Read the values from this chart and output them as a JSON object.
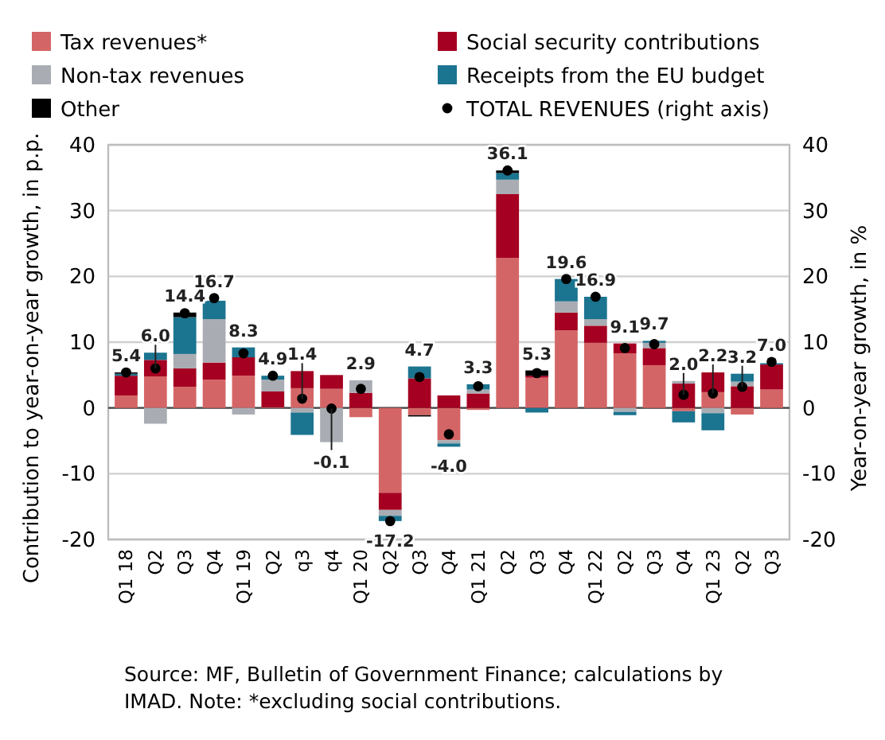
{
  "chart_data": {
    "type": "bar",
    "stacked": true,
    "ylabel": "Contribution to year-on-year growth, in p.p.",
    "y2label": "Year-on-year growth, in %",
    "categories": [
      "Q1 18",
      "Q2",
      "Q3",
      "Q4",
      "Q1 19",
      "Q2",
      "q3",
      "q4",
      "Q1 20",
      "Q2",
      "Q3",
      "Q4",
      "Q1 21",
      "Q2",
      "Q3",
      "Q4",
      "Q1 22",
      "Q2",
      "Q3",
      "Q4",
      "Q1 23",
      "Q2",
      "Q3"
    ],
    "series": [
      {
        "name": "Tax revenues*",
        "color": "#d46566",
        "values": [
          1.9,
          4.8,
          3.2,
          4.3,
          4.9,
          0.1,
          3.0,
          2.9,
          -1.4,
          -12.9,
          -1.1,
          -4.9,
          -0.3,
          22.8,
          4.6,
          11.8,
          9.9,
          8.3,
          6.5,
          -0.5,
          2.4,
          -1.0,
          2.8
        ]
      },
      {
        "name": "Social security contributions",
        "color": "#a50021",
        "values": [
          3.0,
          2.5,
          2.8,
          2.6,
          2.8,
          2.4,
          2.6,
          2.1,
          2.3,
          -2.6,
          4.5,
          1.9,
          2.2,
          9.7,
          0.3,
          2.7,
          2.6,
          1.5,
          2.6,
          3.7,
          3.0,
          3.3,
          3.8
        ]
      },
      {
        "name": "Non-tax revenues",
        "color": "#a9adb3",
        "values": [
          0,
          -2.4,
          2.2,
          6.6,
          -1.0,
          1.8,
          -0.7,
          -5.2,
          1.9,
          -0.9,
          null,
          -0.5,
          0.6,
          2.2,
          null,
          1.7,
          1.0,
          -0.6,
          0.8,
          0.4,
          -0.8,
          0.7,
          null
        ]
      },
      {
        "name": "Receipts from the EU budget",
        "color": "#1b7490",
        "values": [
          0.3,
          1.1,
          5.6,
          2.8,
          1.5,
          0.6,
          -3.4,
          0,
          0,
          -0.8,
          1.8,
          -0.5,
          0.8,
          1.0,
          -0.7,
          3.4,
          3.4,
          -0.5,
          0.3,
          -1.7,
          -2.6,
          1.2,
          0.2
        ]
      },
      {
        "name": "Other",
        "color": "#000000",
        "values": [
          0.2,
          0,
          0.7,
          null,
          0,
          0,
          0,
          0,
          0,
          0,
          -0.2,
          0,
          0,
          0.4,
          0.8,
          0,
          0,
          0,
          0,
          0,
          0,
          0,
          0
        ]
      },
      {
        "name": "TOTAL REVENUES (right axis)",
        "type": "scatter",
        "axis": "y2",
        "color": "#000000",
        "marker": "circle",
        "values": [
          5.4,
          6.0,
          14.4,
          16.7,
          8.3,
          4.9,
          1.4,
          -0.1,
          2.9,
          -17.2,
          4.7,
          -4.0,
          3.3,
          36.1,
          5.3,
          19.6,
          16.9,
          9.1,
          9.7,
          2.0,
          2.2,
          3.2,
          7.0
        ],
        "value_labels": [
          "5.4",
          "6.0",
          "14.4",
          "16.7",
          "8.3",
          "4.9",
          "1.4",
          "-0.1",
          "2.9",
          "-17.2",
          "4.7",
          "-4.0",
          "3.3",
          "36.1",
          "5.3",
          "19.6",
          "16.9",
          "9.1",
          "9.7",
          "2.0",
          "2.2",
          "3.2",
          "7.0"
        ]
      }
    ],
    "ylim": [
      -20,
      40
    ],
    "yticks": [
      -20,
      -10,
      0,
      10,
      20,
      30,
      40
    ],
    "y2lim": [
      -20,
      40
    ],
    "y2ticks": [
      -20,
      -10,
      0,
      10,
      20,
      30,
      40
    ],
    "grid": "y",
    "legend": "top",
    "annotations": [
      "Source: MF, Bulletin of Government Finance; calculations by IMAD. Note: *excluding social contributions."
    ]
  }
}
